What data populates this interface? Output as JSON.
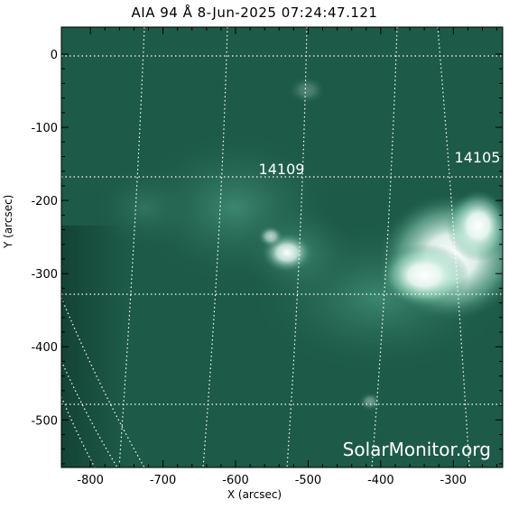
{
  "title": "AIA 94 Å   8-Jun-2025 07:24:47.121",
  "axes": {
    "xlabel": "X (arcsec)",
    "ylabel": "Y (arcsec)",
    "xlim": [
      -840,
      -232
    ],
    "ylim": [
      -565,
      37
    ],
    "xticks": [
      "-800",
      "-700",
      "-600",
      "-500",
      "-400",
      "-300"
    ],
    "yticks": [
      "0",
      "-100",
      "-200",
      "-300",
      "-400",
      "-500"
    ]
  },
  "regions": [
    {
      "label": "14109"
    },
    {
      "label": "14105"
    }
  ],
  "watermark": "SolarMonitor.org",
  "colors": {
    "background": "#1d5a48",
    "bright": "#ffffff",
    "grid": "#ffffff"
  }
}
